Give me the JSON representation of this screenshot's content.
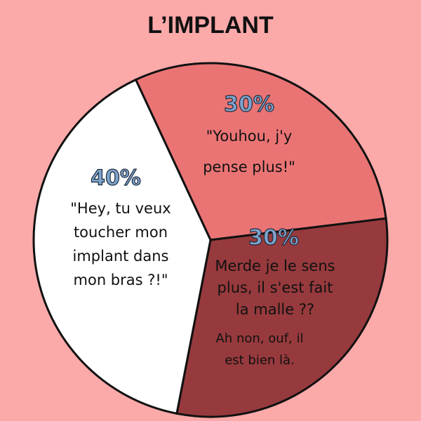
{
  "chart_data": {
    "type": "pie",
    "title": "L’IMPLANT",
    "values": [
      30,
      30,
      40
    ],
    "value_labels": [
      "30%",
      "30%",
      "40%"
    ],
    "labels": [
      [
        "\"Youhou, j'y",
        "pense plus!\""
      ],
      [
        "Merde je le sens",
        "plus, il s'est fait",
        "la malle ??",
        "Ah non, ouf, il",
        "est bien là."
      ],
      [
        "\"Hey, tu veux",
        "toucher mon",
        "implant dans",
        "mon bras ?!\""
      ]
    ],
    "colors": [
      "#ea7474",
      "#973a3d",
      "#ffffff"
    ]
  }
}
